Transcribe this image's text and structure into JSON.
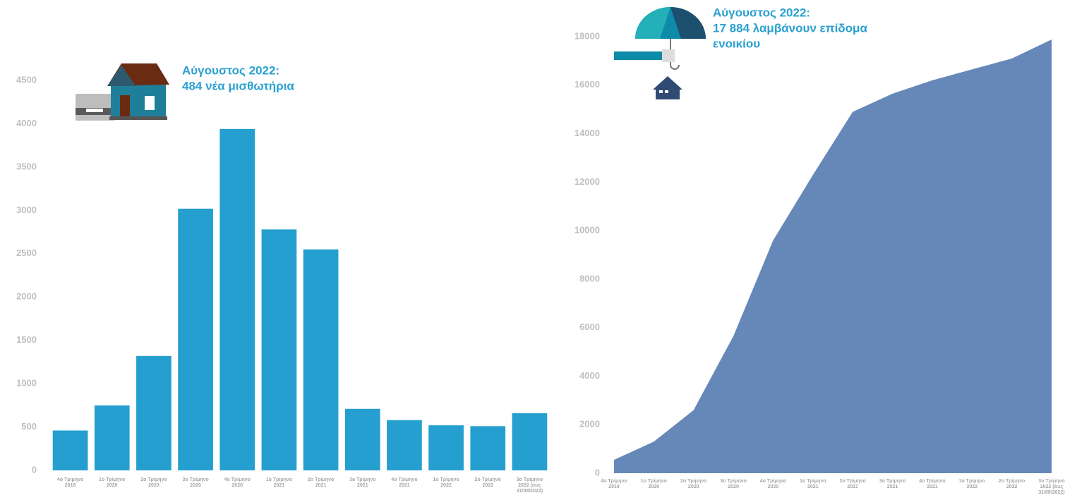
{
  "chart_data": [
    {
      "type": "bar",
      "annotation": [
        "Αύγουστος 2022:",
        "484 νέα μισθωτήρια"
      ],
      "categories": [
        "4ο Τρίμηνο 2019",
        "1ο Τρίμηνο 2020",
        "2ο Τρίμηνο 2020",
        "3ο Τρίμηνο 2020",
        "4ο Τρίμηνο 2020",
        "1ο Τρίμηνο 2021",
        "2ο Τρίμηνο 2021",
        "3ο Τρίμηνο 2021",
        "4ο Τρίμηνο 2021",
        "1ο Τρίμηνο 2022",
        "2ο Τρίμηνο 2022",
        "3ο Τρίμηνο 2022 (έως 31/08/2022)"
      ],
      "values": [
        460,
        750,
        1320,
        3020,
        3940,
        2780,
        2550,
        710,
        580,
        520,
        510,
        660
      ],
      "color": "#259fcf",
      "ylim": [
        0,
        4500
      ],
      "yticks": [
        0,
        500,
        1000,
        1500,
        2000,
        2500,
        3000,
        3500,
        4000,
        4500
      ]
    },
    {
      "type": "area",
      "annotation": [
        "Αύγουστος 2022:",
        "17 884 λαμβάνουν επίδομα",
        "ενοικίου"
      ],
      "categories": [
        "4ο Τρίμηνο 2019",
        "1ο Τρίμηνο 2020",
        "2ο Τρίμηνο 2020",
        "3ο Τρίμηνο 2020",
        "4ο Τρίμηνο 2020",
        "1ο Τρίμηνο 2021",
        "2ο Τρίμηνο 2021",
        "3ο Τρίμηνο 2021",
        "4ο Τρίμηνο 2021",
        "1ο Τρίμηνο 2022",
        "2ο Τρίμηνο 2022",
        "3ο Τρίμηνο 2022 (έως 31/08/2022)"
      ],
      "values": [
        550,
        1300,
        2600,
        5650,
        9600,
        12300,
        14900,
        15650,
        16200,
        16650,
        17100,
        17884
      ],
      "color": "#6688b8",
      "ylim": [
        0,
        18000
      ],
      "yticks": [
        0,
        2000,
        4000,
        6000,
        8000,
        10000,
        12000,
        14000,
        16000,
        18000
      ]
    }
  ]
}
